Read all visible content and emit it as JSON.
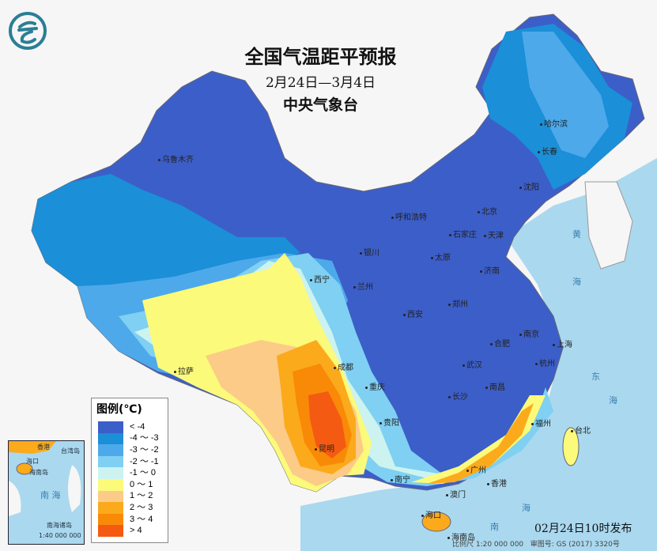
{
  "header": {
    "title": "全国气温距平预报",
    "period": "2月24日—3月4日",
    "issuer": "中央气象台"
  },
  "legend": {
    "title": "图例(℃)",
    "items": [
      {
        "label": "< -4",
        "color": "#3c5ec8"
      },
      {
        "label": "-4 ～ -3",
        "color": "#1b8fd8"
      },
      {
        "label": "-3 ～ -2",
        "color": "#4ea9ea"
      },
      {
        "label": "-2 ～ -1",
        "color": "#7fd0f2"
      },
      {
        "label": "-1 ～ 0",
        "color": "#ccf3f0"
      },
      {
        "label": "0 ～ 1",
        "color": "#fbfa7a"
      },
      {
        "label": "1 ～ 2",
        "color": "#fccb88"
      },
      {
        "label": "2 ～ 3",
        "color": "#fbaa1c"
      },
      {
        "label": "3 ～ 4",
        "color": "#f88a08"
      },
      {
        "label": "> 4",
        "color": "#f55a12"
      }
    ]
  },
  "cities": [
    "乌鲁木齐",
    "哈尔滨",
    "长春",
    "沈阳",
    "北京",
    "天津",
    "呼和浩特",
    "石家庄",
    "太原",
    "银川",
    "济南",
    "西宁",
    "兰州",
    "郑州",
    "西安",
    "南京",
    "合肥",
    "上海",
    "杭州",
    "武汉",
    "成都",
    "重庆",
    "长沙",
    "南昌",
    "拉萨",
    "贵阳",
    "福州",
    "台北",
    "昆明",
    "南宁",
    "广州",
    "香港",
    "澳门",
    "海口",
    "海南岛"
  ],
  "seas": [
    "黄",
    "海",
    "东",
    "海",
    "南",
    "海"
  ],
  "inset": {
    "sea": "南 海",
    "title": "南海诸岛",
    "scale": "1:40 000 000",
    "labels": [
      "海口",
      "海南岛",
      "香港",
      "台湾岛"
    ]
  },
  "footer": {
    "published": "02月24日10时发布",
    "scale": "比例尺 1:20 000 000",
    "map_no": "审图号: GS (2017) 3320号"
  },
  "colors": {
    "sea": "#aad8ef",
    "background": "#f6f6f6",
    "logo": "#2a7f95"
  }
}
